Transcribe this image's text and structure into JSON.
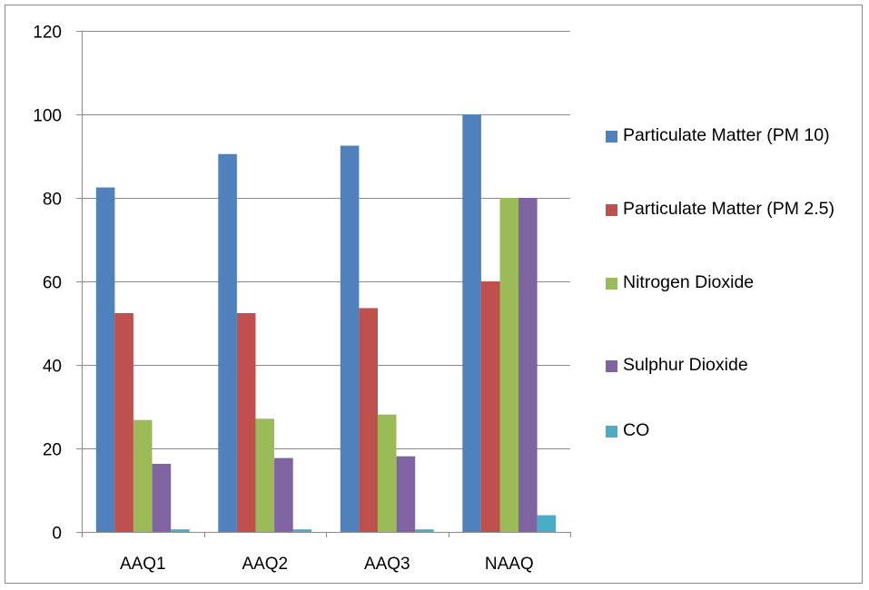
{
  "chart_data": {
    "type": "bar",
    "categories": [
      "AAQ1",
      "AAQ2",
      "AAQ3",
      "NAAQ"
    ],
    "series": [
      {
        "name": "Particulate Matter (PM 10)",
        "color": "#4F81BD",
        "values": [
          82.5,
          90.5,
          92.5,
          100
        ]
      },
      {
        "name": "Particulate Matter (PM 2.5)",
        "color": "#C0504D",
        "values": [
          52.4,
          52.4,
          53.6,
          60
        ]
      },
      {
        "name": "Nitrogen Dioxide",
        "color": "#9BBB59",
        "values": [
          26.8,
          27.1,
          28.1,
          80
        ]
      },
      {
        "name": "Sulphur Dioxide",
        "color": "#8064A2",
        "values": [
          16.3,
          17.7,
          18.1,
          80
        ]
      },
      {
        "name": "CO",
        "color": "#4BACC6",
        "values": [
          0.6,
          0.6,
          0.6,
          4
        ]
      }
    ],
    "ylim": [
      0,
      120
    ],
    "yticks": [
      "0",
      "20",
      "40",
      "60",
      "80",
      "100",
      "120"
    ],
    "grid": true,
    "legend_position": "right",
    "gridline_color": "#8c8c8c"
  }
}
